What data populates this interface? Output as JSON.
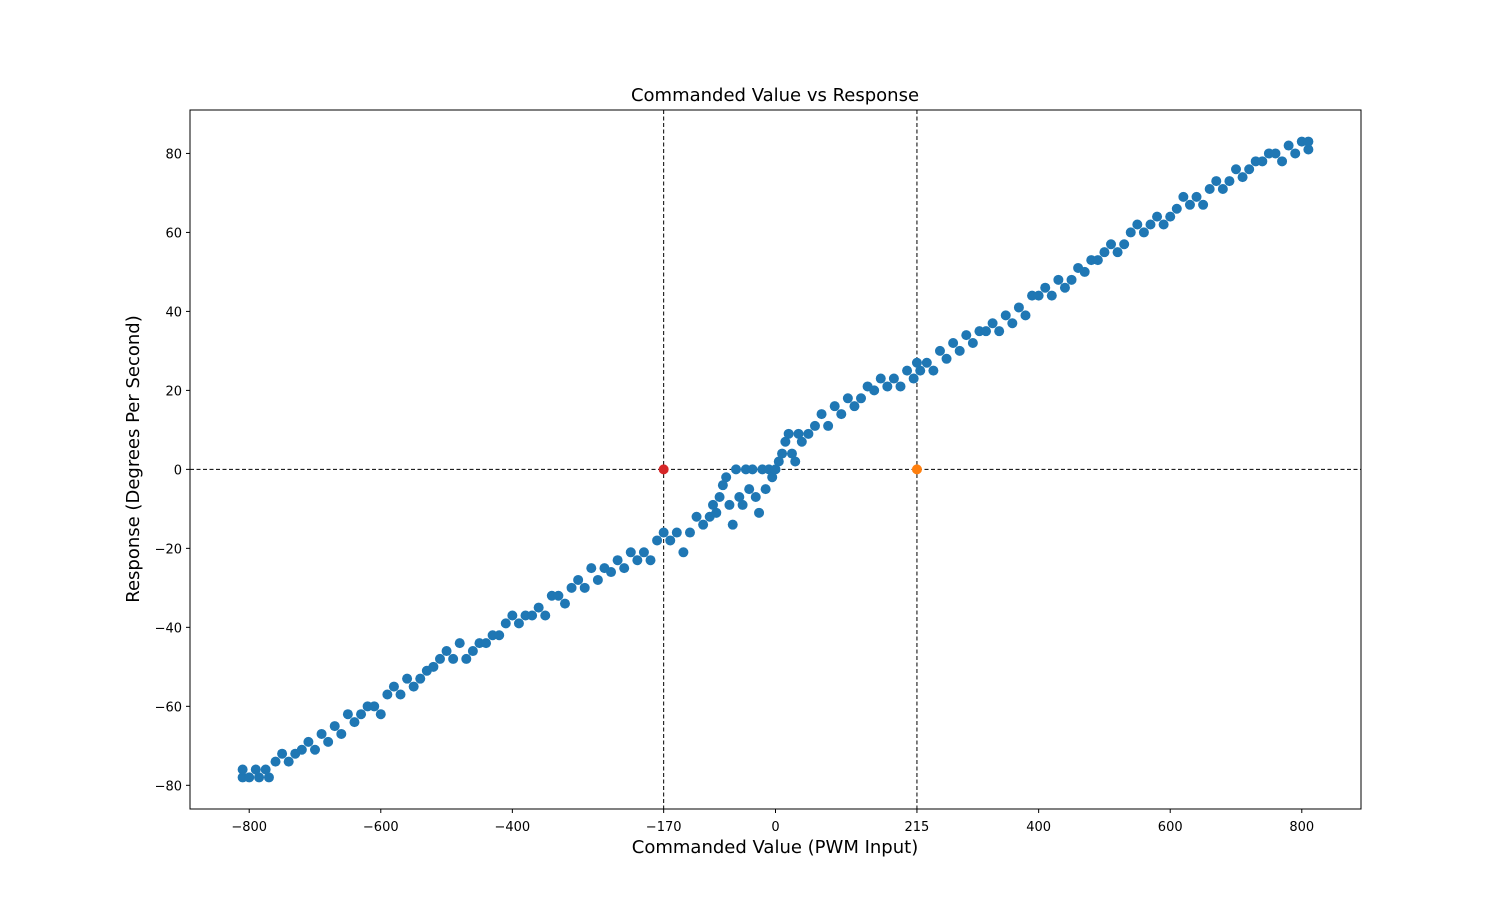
{
  "chart_data": {
    "type": "scatter",
    "title": "Commanded Value vs Response",
    "xlabel": "Commanded Value (PWM Input)",
    "ylabel": "Response (Degrees Per Second)",
    "xlim": [
      -890,
      890
    ],
    "ylim": [
      -86,
      91
    ],
    "xticks": [
      -800,
      -600,
      -400,
      -170,
      0,
      215,
      400,
      600,
      800
    ],
    "xtick_labels": [
      "−800",
      "−600",
      "−400",
      "−170",
      "0",
      "215",
      "400",
      "600",
      "800"
    ],
    "yticks": [
      -80,
      -60,
      -40,
      -20,
      0,
      20,
      40,
      60,
      80
    ],
    "ytick_labels": [
      "−80",
      "−60",
      "−40",
      "−20",
      "0",
      "20",
      "40",
      "60",
      "80"
    ],
    "grid": false,
    "reference_lines": {
      "vertical": [
        -170,
        215
      ],
      "horizontal": [
        0
      ]
    },
    "series_color": "#1f77b4",
    "series": [
      {
        "points": [
          [
            -810,
            -78
          ],
          [
            -810,
            -76
          ],
          [
            -800,
            -78
          ],
          [
            -790,
            -76
          ],
          [
            -785,
            -78
          ],
          [
            -775,
            -76
          ],
          [
            -770,
            -78
          ],
          [
            -760,
            -74
          ],
          [
            -750,
            -72
          ],
          [
            -740,
            -74
          ],
          [
            -730,
            -72
          ],
          [
            -720,
            -71
          ],
          [
            -710,
            -69
          ],
          [
            -700,
            -71
          ],
          [
            -690,
            -67
          ],
          [
            -680,
            -69
          ],
          [
            -670,
            -65
          ],
          [
            -660,
            -67
          ],
          [
            -650,
            -62
          ],
          [
            -640,
            -64
          ],
          [
            -630,
            -62
          ],
          [
            -620,
            -60
          ],
          [
            -610,
            -60
          ],
          [
            -600,
            -62
          ],
          [
            -590,
            -57
          ],
          [
            -580,
            -55
          ],
          [
            -570,
            -57
          ],
          [
            -560,
            -53
          ],
          [
            -550,
            -55
          ],
          [
            -540,
            -53
          ],
          [
            -530,
            -51
          ],
          [
            -520,
            -50
          ],
          [
            -510,
            -48
          ],
          [
            -500,
            -46
          ],
          [
            -490,
            -48
          ],
          [
            -480,
            -44
          ],
          [
            -470,
            -48
          ],
          [
            -460,
            -46
          ],
          [
            -450,
            -44
          ],
          [
            -440,
            -44
          ],
          [
            -430,
            -42
          ],
          [
            -420,
            -42
          ],
          [
            -410,
            -39
          ],
          [
            -400,
            -37
          ],
          [
            -390,
            -39
          ],
          [
            -380,
            -37
          ],
          [
            -370,
            -37
          ],
          [
            -360,
            -35
          ],
          [
            -350,
            -37
          ],
          [
            -340,
            -32
          ],
          [
            -330,
            -32
          ],
          [
            -320,
            -34
          ],
          [
            -310,
            -30
          ],
          [
            -300,
            -28
          ],
          [
            -290,
            -30
          ],
          [
            -280,
            -25
          ],
          [
            -270,
            -28
          ],
          [
            -260,
            -25
          ],
          [
            -250,
            -26
          ],
          [
            -240,
            -23
          ],
          [
            -230,
            -25
          ],
          [
            -220,
            -21
          ],
          [
            -210,
            -23
          ],
          [
            -200,
            -21
          ],
          [
            -190,
            -23
          ],
          [
            -180,
            -18
          ],
          [
            -170,
            -16
          ],
          [
            -160,
            -18
          ],
          [
            -150,
            -16
          ],
          [
            -140,
            -21
          ],
          [
            -130,
            -16
          ],
          [
            -120,
            -12
          ],
          [
            -110,
            -14
          ],
          [
            -100,
            -12
          ],
          [
            -95,
            -9
          ],
          [
            -90,
            -11
          ],
          [
            -85,
            -7
          ],
          [
            -80,
            -4
          ],
          [
            -75,
            -2
          ],
          [
            -70,
            -9
          ],
          [
            -65,
            -14
          ],
          [
            -60,
            0
          ],
          [
            -55,
            -7
          ],
          [
            -50,
            -9
          ],
          [
            -45,
            0
          ],
          [
            -40,
            -5
          ],
          [
            -35,
            0
          ],
          [
            -30,
            -7
          ],
          [
            -25,
            -11
          ],
          [
            -20,
            0
          ],
          [
            -15,
            -5
          ],
          [
            -10,
            0
          ],
          [
            -5,
            -2
          ],
          [
            0,
            0
          ],
          [
            5,
            2
          ],
          [
            10,
            4
          ],
          [
            15,
            7
          ],
          [
            20,
            9
          ],
          [
            25,
            4
          ],
          [
            30,
            2
          ],
          [
            35,
            9
          ],
          [
            40,
            7
          ],
          [
            50,
            9
          ],
          [
            60,
            11
          ],
          [
            70,
            14
          ],
          [
            80,
            11
          ],
          [
            90,
            16
          ],
          [
            100,
            14
          ],
          [
            110,
            18
          ],
          [
            120,
            16
          ],
          [
            130,
            18
          ],
          [
            140,
            21
          ],
          [
            150,
            20
          ],
          [
            160,
            23
          ],
          [
            170,
            21
          ],
          [
            180,
            23
          ],
          [
            190,
            21
          ],
          [
            200,
            25
          ],
          [
            210,
            23
          ],
          [
            215,
            27
          ],
          [
            220,
            25
          ],
          [
            230,
            27
          ],
          [
            240,
            25
          ],
          [
            250,
            30
          ],
          [
            260,
            28
          ],
          [
            270,
            32
          ],
          [
            280,
            30
          ],
          [
            290,
            34
          ],
          [
            300,
            32
          ],
          [
            310,
            35
          ],
          [
            320,
            35
          ],
          [
            330,
            37
          ],
          [
            340,
            35
          ],
          [
            350,
            39
          ],
          [
            360,
            37
          ],
          [
            370,
            41
          ],
          [
            380,
            39
          ],
          [
            390,
            44
          ],
          [
            400,
            44
          ],
          [
            410,
            46
          ],
          [
            420,
            44
          ],
          [
            430,
            48
          ],
          [
            440,
            46
          ],
          [
            450,
            48
          ],
          [
            460,
            51
          ],
          [
            470,
            50
          ],
          [
            480,
            53
          ],
          [
            490,
            53
          ],
          [
            500,
            55
          ],
          [
            510,
            57
          ],
          [
            520,
            55
          ],
          [
            530,
            57
          ],
          [
            540,
            60
          ],
          [
            550,
            62
          ],
          [
            560,
            60
          ],
          [
            570,
            62
          ],
          [
            580,
            64
          ],
          [
            590,
            62
          ],
          [
            600,
            64
          ],
          [
            610,
            66
          ],
          [
            620,
            69
          ],
          [
            630,
            67
          ],
          [
            640,
            69
          ],
          [
            650,
            67
          ],
          [
            660,
            71
          ],
          [
            670,
            73
          ],
          [
            680,
            71
          ],
          [
            690,
            73
          ],
          [
            700,
            76
          ],
          [
            710,
            74
          ],
          [
            720,
            76
          ],
          [
            730,
            78
          ],
          [
            740,
            78
          ],
          [
            750,
            80
          ],
          [
            760,
            80
          ],
          [
            770,
            78
          ],
          [
            780,
            82
          ],
          [
            790,
            80
          ],
          [
            800,
            83
          ],
          [
            810,
            81
          ],
          [
            810,
            83
          ]
        ]
      }
    ],
    "markers": [
      {
        "x": -170,
        "y": 0,
        "color": "#d62728"
      },
      {
        "x": 215,
        "y": 0,
        "color": "#ff7f0e"
      }
    ]
  }
}
